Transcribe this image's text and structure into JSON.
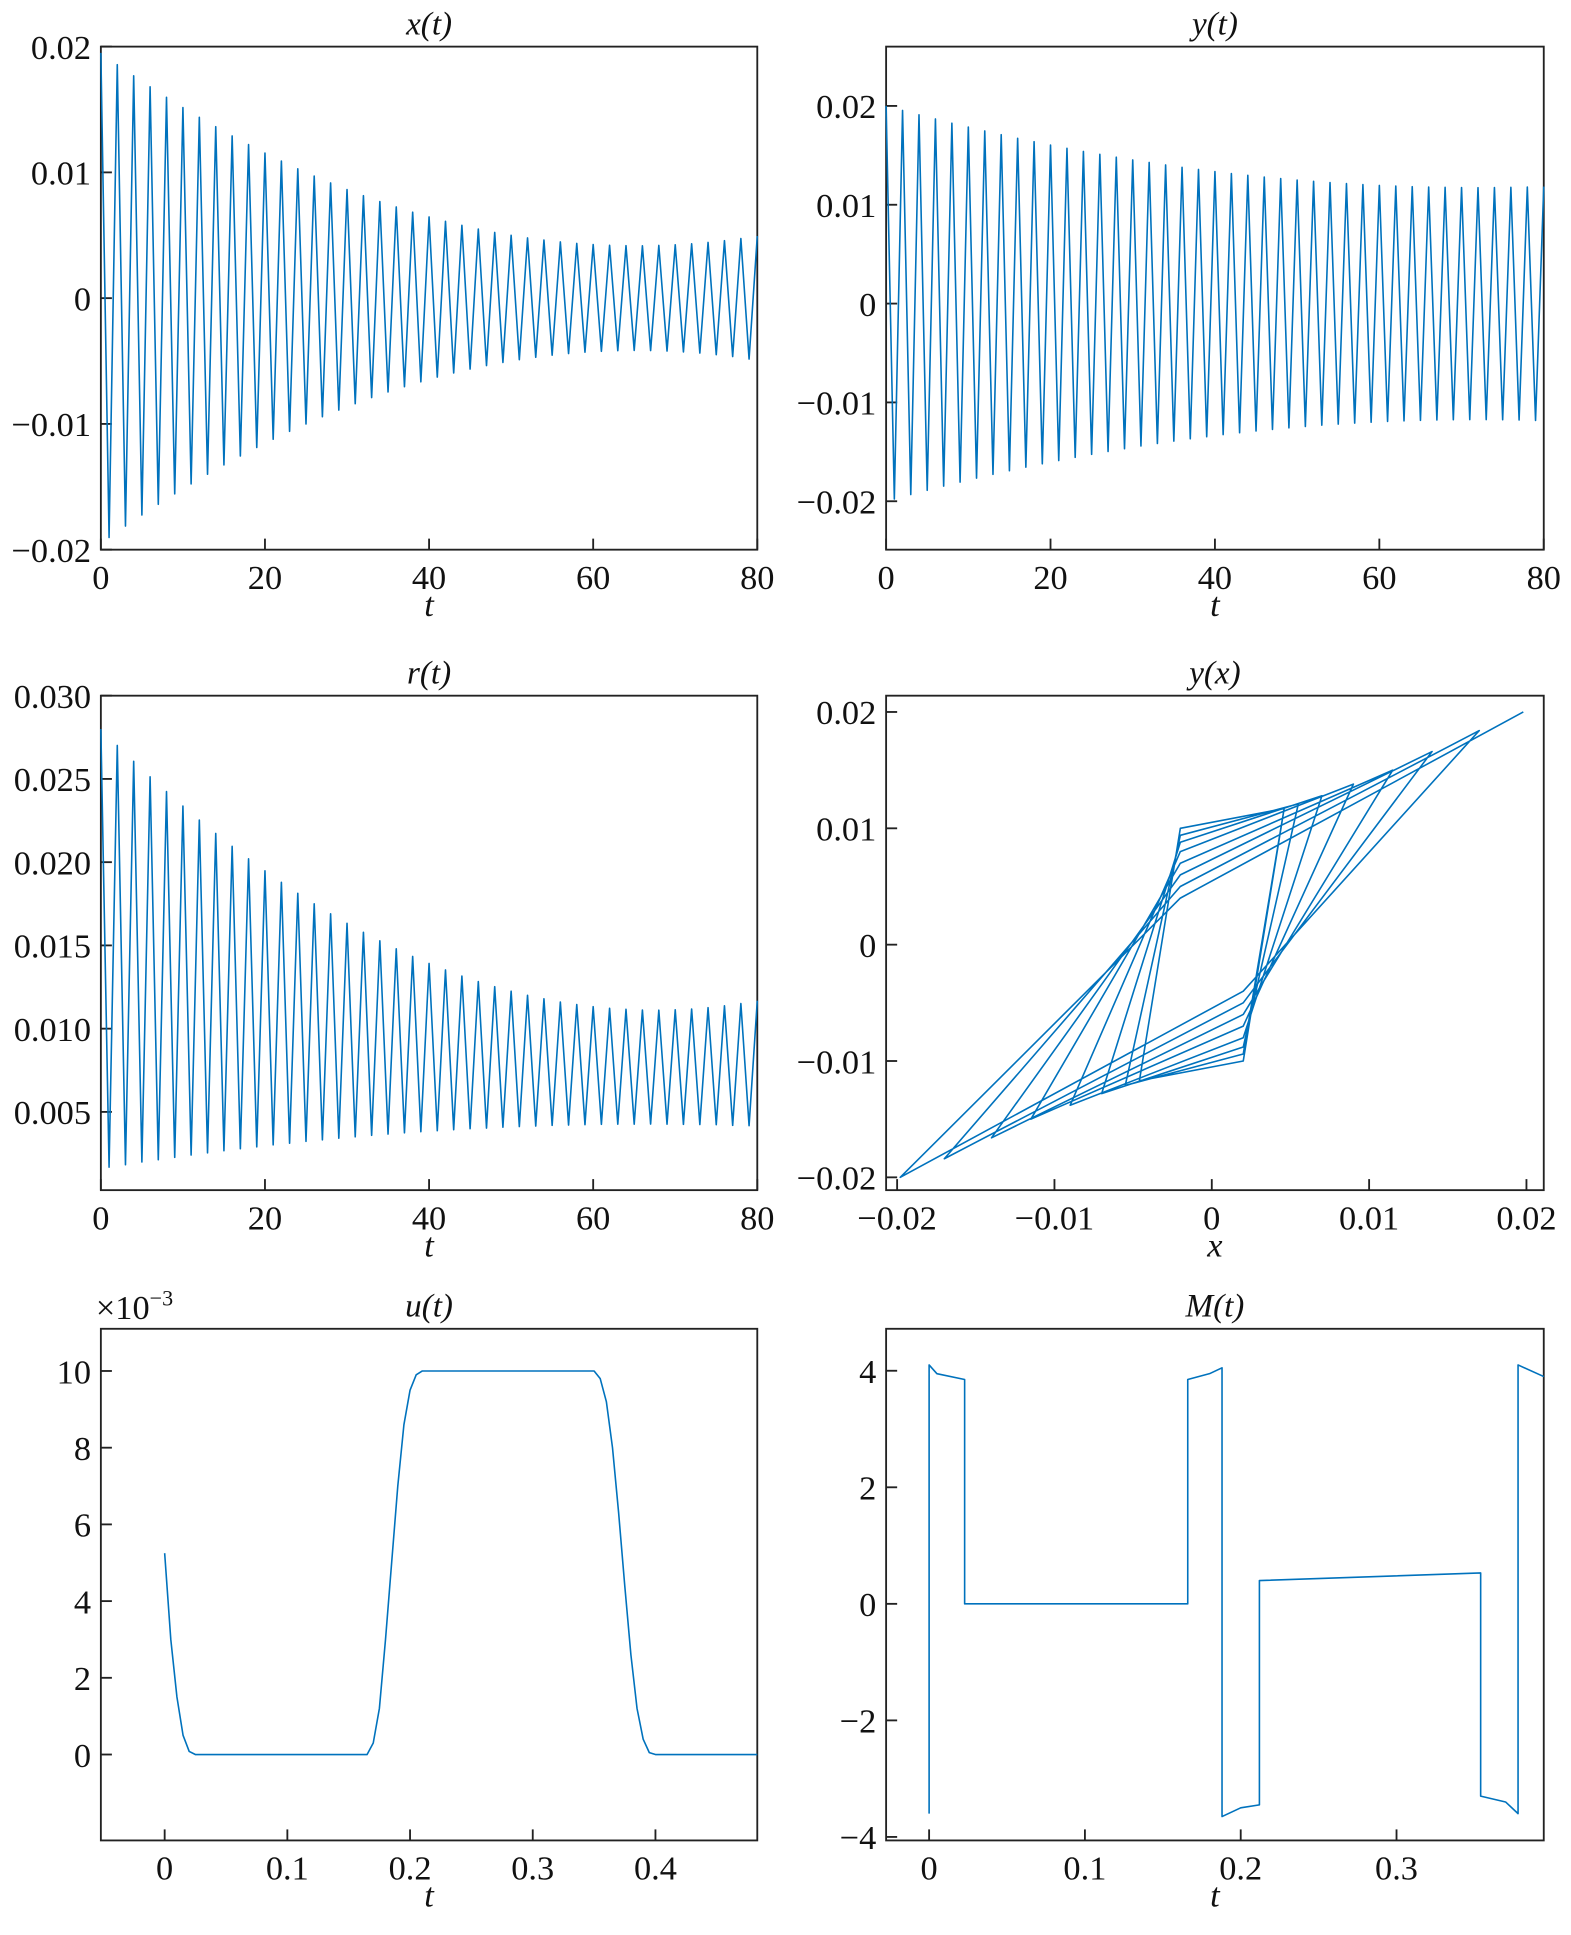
{
  "chart_data": [
    {
      "type": "line",
      "title": "x(t)",
      "xlabel": "t",
      "color": "#0072bd",
      "xlim": [
        0,
        80
      ],
      "ylim": [
        -0.02,
        0.02
      ],
      "xticks": [
        0,
        20,
        40,
        60,
        80
      ],
      "yticks": [
        {
          "value": -0.02,
          "label": "−0.02"
        },
        {
          "value": -0.01,
          "label": "−0.01"
        },
        0,
        0.01,
        0.02
      ],
      "x": [
        0,
        1,
        2,
        3,
        4,
        5,
        6,
        7,
        8,
        9,
        10,
        11,
        12,
        13,
        14,
        15,
        16,
        17,
        18,
        19,
        20,
        21,
        22,
        23,
        24,
        25,
        26,
        27,
        28,
        29,
        30,
        31,
        32,
        33,
        34,
        35,
        36,
        37,
        38,
        39,
        40,
        41,
        42,
        43,
        44,
        45,
        46,
        47,
        48,
        49,
        50,
        51,
        52,
        53,
        54,
        55,
        56,
        57,
        58,
        59,
        60,
        61,
        62,
        63,
        64,
        65,
        66,
        67,
        68,
        69,
        70,
        71,
        72,
        73,
        74,
        75,
        76,
        77,
        78,
        79,
        80
      ],
      "values": [
        0.0195,
        -0.01903,
        0.01857,
        -0.01812,
        0.01768,
        -0.01724,
        0.01681,
        -0.01639,
        0.01597,
        -0.01556,
        0.01516,
        -0.01477,
        0.01438,
        -0.014,
        0.01363,
        -0.01326,
        0.0129,
        -0.01255,
        0.01221,
        -0.01187,
        0.01154,
        -0.01122,
        0.0109,
        -0.01059,
        0.01029,
        -0.01,
        0.00971,
        -0.00943,
        0.00916,
        -0.0089,
        0.00864,
        -0.00839,
        0.00815,
        -0.00791,
        0.00768,
        -0.00746,
        0.00725,
        -0.00704,
        0.00684,
        -0.00665,
        0.00646,
        -0.00628,
        0.00611,
        -0.00595,
        0.00579,
        -0.00564,
        0.0055,
        -0.00536,
        0.00523,
        -0.00511,
        0.005,
        -0.00489,
        0.00479,
        -0.0047,
        0.00462,
        -0.00454,
        0.00447,
        -0.00441,
        0.00435,
        -0.0043,
        0.00426,
        -0.00423,
        0.0042,
        -0.00418,
        0.00417,
        -0.00416,
        0.00416,
        -0.00417,
        0.00419,
        -0.00421,
        0.00424,
        -0.00428,
        0.00432,
        -0.00437,
        0.00443,
        -0.0045,
        0.00457,
        -0.00465,
        0.00474,
        -0.00484,
        0.00494
      ]
    },
    {
      "type": "line",
      "title": "y(t)",
      "xlabel": "t",
      "color": "#0072bd",
      "xlim": [
        0,
        80
      ],
      "ylim": [
        -0.0249,
        0.026
      ],
      "xticks": [
        0,
        20,
        40,
        60,
        80
      ],
      "yticks": [
        {
          "value": -0.02,
          "label": "−0.02"
        },
        {
          "value": -0.01,
          "label": "−0.01"
        },
        0,
        0.01,
        0.02
      ],
      "x": [
        0,
        1,
        2,
        3,
        4,
        5,
        6,
        7,
        8,
        9,
        10,
        11,
        12,
        13,
        14,
        15,
        16,
        17,
        18,
        19,
        20,
        21,
        22,
        23,
        24,
        25,
        26,
        27,
        28,
        29,
        30,
        31,
        32,
        33,
        34,
        35,
        36,
        37,
        38,
        39,
        40,
        41,
        42,
        43,
        44,
        45,
        46,
        47,
        48,
        49,
        50,
        51,
        52,
        53,
        54,
        55,
        56,
        57,
        58,
        59,
        60,
        61,
        62,
        63,
        64,
        65,
        66,
        67,
        68,
        69,
        70,
        71,
        72,
        73,
        74,
        75,
        76,
        77,
        78,
        79,
        80
      ],
      "values": [
        0.02,
        -0.01977,
        0.01955,
        -0.01932,
        0.0191,
        -0.01889,
        0.01868,
        -0.01847,
        0.01826,
        -0.01806,
        0.01786,
        -0.01766,
        0.01747,
        -0.01728,
        0.01709,
        -0.01691,
        0.01673,
        -0.01655,
        0.01638,
        -0.01621,
        0.01604,
        -0.01588,
        0.01571,
        -0.01556,
        0.0154,
        -0.01525,
        0.0151,
        -0.01496,
        0.01481,
        -0.01468,
        0.01454,
        -0.01441,
        0.01428,
        -0.01415,
        0.01403,
        -0.01391,
        0.01379,
        -0.01368,
        0.01357,
        -0.01347,
        0.01336,
        -0.01326,
        0.01316,
        -0.01307,
        0.01298,
        -0.01289,
        0.01281,
        -0.01273,
        0.01265,
        -0.01257,
        0.0125,
        -0.01243,
        0.01237,
        -0.0123,
        0.01225,
        -0.01219,
        0.01214,
        -0.01209,
        0.01204,
        -0.012,
        0.01196,
        -0.01192,
        0.01189,
        -0.01186,
        0.01183,
        -0.01181,
        0.01179,
        -0.01177,
        0.01176,
        -0.01175,
        0.01174,
        -0.01174,
        0.01173,
        -0.01174,
        0.01174,
        -0.01175,
        0.01176,
        -0.01178,
        0.01179,
        -0.01182,
        0.01184
      ]
    },
    {
      "type": "line",
      "title": "r(t)",
      "xlabel": "t",
      "color": "#0072bd",
      "xlim": [
        0,
        80
      ],
      "ylim": [
        0.0003,
        0.03
      ],
      "xticks": [
        0,
        20,
        40,
        60,
        80
      ],
      "yticks": [
        0.005,
        {
          "value": 0.01,
          "label": "0.010"
        },
        0.015,
        {
          "value": 0.02,
          "label": "0.020"
        },
        0.025,
        {
          "value": 0.03,
          "label": "0.030"
        }
      ],
      "x": [
        0,
        1,
        2,
        3,
        4,
        5,
        6,
        7,
        8,
        9,
        10,
        11,
        12,
        13,
        14,
        15,
        16,
        17,
        18,
        19,
        20,
        21,
        22,
        23,
        24,
        25,
        26,
        27,
        28,
        29,
        30,
        31,
        32,
        33,
        34,
        35,
        36,
        37,
        38,
        39,
        40,
        41,
        42,
        43,
        44,
        45,
        46,
        47,
        48,
        49,
        50,
        51,
        52,
        53,
        54,
        55,
        56,
        57,
        58,
        59,
        60,
        61,
        62,
        63,
        64,
        65,
        66,
        67,
        68,
        69,
        70,
        71,
        72,
        73,
        74,
        75,
        76,
        77,
        78,
        79,
        80
      ],
      "values": [
        0.028,
        0.00168,
        0.02701,
        0.00183,
        0.02606,
        0.00199,
        0.02513,
        0.00213,
        0.02424,
        0.00227,
        0.02337,
        0.00241,
        0.02253,
        0.00254,
        0.02173,
        0.00267,
        0.02095,
        0.00279,
        0.0202,
        0.0029,
        0.01948,
        0.00302,
        0.01879,
        0.00312,
        0.01813,
        0.00323,
        0.0175,
        0.00332,
        0.0169,
        0.00342,
        0.01633,
        0.0035,
        0.01579,
        0.00359,
        0.01528,
        0.00367,
        0.0148,
        0.00374,
        0.01434,
        0.00381,
        0.01392,
        0.00387,
        0.01353,
        0.00393,
        0.01316,
        0.00399,
        0.01283,
        0.00403,
        0.01252,
        0.00408,
        0.01225,
        0.00412,
        0.012,
        0.00415,
        0.01179,
        0.00419,
        0.0116,
        0.00421,
        0.01145,
        0.00423,
        0.01132,
        0.00425,
        0.01122,
        0.00426,
        0.01116,
        0.00426,
        0.01112,
        0.00427,
        0.01111,
        0.00426,
        0.01113,
        0.00425,
        0.01118,
        0.00424,
        0.01126,
        0.00423,
        0.01137,
        0.00419,
        0.01151,
        0.00417,
        0.01168
      ]
    },
    {
      "type": "line",
      "title": "y(x)",
      "xlabel": "x",
      "color": "#0072bd",
      "xlim": [
        -0.0207,
        0.0211
      ],
      "ylim": [
        -0.0211,
        0.0214
      ],
      "xticks": [
        {
          "value": -0.02,
          "label": "−0.02"
        },
        {
          "value": -0.01,
          "label": "−0.01"
        },
        0,
        0.01,
        0.02
      ],
      "yticks": [
        {
          "value": -0.02,
          "label": "−0.02"
        },
        {
          "value": -0.01,
          "label": "−0.01"
        },
        0,
        0.01,
        0.02
      ],
      "x": [
        0.0198,
        -0.002,
        -0.0198,
        0.002,
        0.017,
        -0.002,
        -0.017,
        0.002,
        0.014,
        -0.002,
        -0.014,
        0.002,
        0.0115,
        -0.002,
        -0.0115,
        0.002,
        0.009,
        -0.002,
        -0.009,
        0.002,
        0.007,
        -0.002,
        -0.007,
        0.002,
        0.0055,
        -0.002,
        -0.0055,
        0.002,
        0.0046,
        -0.002,
        -0.0046,
        0.002,
        0.0046
      ],
      "values": [
        0.02,
        0.004,
        -0.02,
        -0.004,
        0.0184,
        0.005,
        -0.0184,
        -0.005,
        0.0166,
        0.006,
        -0.0166,
        -0.006,
        0.015,
        0.007,
        -0.015,
        -0.007,
        0.0138,
        0.008,
        -0.0138,
        -0.008,
        0.0128,
        0.0088,
        -0.0128,
        -0.0088,
        0.0121,
        0.0094,
        -0.0121,
        -0.0094,
        0.0117,
        0.01,
        -0.0117,
        -0.01,
        0.0117
      ]
    },
    {
      "type": "line",
      "title": "u(t)",
      "xlabel": "t",
      "color": "#0072bd",
      "y_multiplier": {
        "base": "×10",
        "exponent": "−3"
      },
      "xlim": [
        -0.052,
        0.483
      ],
      "ylim": [
        -2.24,
        11.1
      ],
      "xticks": [
        0,
        0.1,
        0.2,
        0.3,
        0.4
      ],
      "yticks": [
        0,
        2,
        4,
        6,
        8,
        10
      ],
      "x": [
        0,
        0.005,
        0.01,
        0.015,
        0.02,
        0.025,
        0.165,
        0.17,
        0.175,
        0.18,
        0.185,
        0.19,
        0.195,
        0.2,
        0.205,
        0.21,
        0.35,
        0.355,
        0.36,
        0.365,
        0.37,
        0.375,
        0.38,
        0.385,
        0.39,
        0.395,
        0.4,
        0.483
      ],
      "values": [
        5.25,
        3.0,
        1.5,
        0.5,
        0.08,
        0,
        0,
        0.3,
        1.2,
        3,
        5,
        7,
        8.6,
        9.5,
        9.9,
        10,
        10,
        9.8,
        9.2,
        8,
        6.3,
        4.4,
        2.6,
        1.2,
        0.4,
        0.05,
        0,
        0
      ]
    },
    {
      "type": "line",
      "title": "M(t)",
      "xlabel": "t",
      "color": "#0072bd",
      "xlim": [
        -0.0276,
        0.3945
      ],
      "ylim": [
        -4.06,
        4.72
      ],
      "xticks": [
        0,
        0.1,
        0.2,
        0.3
      ],
      "yticks": [
        {
          "value": -4,
          "label": "−4"
        },
        {
          "value": -2,
          "label": "−2"
        },
        0,
        2,
        4
      ],
      "x": [
        0,
        0,
        0.005,
        0.0228,
        0.0228,
        0.166,
        0.166,
        0.18,
        0.188,
        0.188,
        0.2,
        0.212,
        0.212,
        0.354,
        0.354,
        0.37,
        0.378,
        0.378,
        0.3945
      ],
      "values": [
        -3.6,
        4.1,
        3.95,
        3.85,
        0,
        0,
        3.85,
        3.95,
        4.05,
        -3.65,
        -3.5,
        -3.45,
        0.4,
        0.53,
        -3.3,
        -3.4,
        -3.6,
        4.1,
        3.9
      ]
    }
  ]
}
